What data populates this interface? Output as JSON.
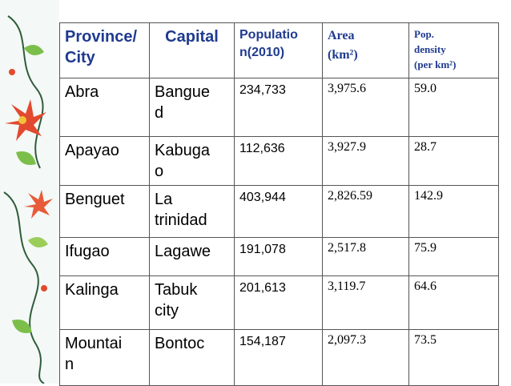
{
  "table": {
    "header": [
      [
        "Province/",
        "City"
      ],
      [
        "Capital"
      ],
      [
        "Populatio",
        "n(2010)"
      ],
      [
        "Area",
        "(km²)"
      ],
      [
        "Pop.",
        "density",
        "(per km²)"
      ]
    ],
    "rows": [
      [
        [
          "Abra"
        ],
        [
          "Bangue",
          "d"
        ],
        [
          "234,733"
        ],
        [
          "3,975.6"
        ],
        [
          "59.0"
        ]
      ],
      [
        [
          "Apayao"
        ],
        [
          "Kabuga",
          "o"
        ],
        [
          "112,636"
        ],
        [
          "3,927.9"
        ],
        [
          "28.7"
        ]
      ],
      [
        [
          "Benguet"
        ],
        [
          "La",
          "trinidad"
        ],
        [
          "403,944"
        ],
        [
          "2,826.59"
        ],
        [
          "142.9"
        ]
      ],
      [
        [
          "Ifugao"
        ],
        [
          "Lagawe"
        ],
        [
          "191,078"
        ],
        [
          "2,517.8"
        ],
        [
          "75.9"
        ]
      ],
      [
        [
          "Kalinga"
        ],
        [
          "Tabuk",
          "city"
        ],
        [
          "201,613"
        ],
        [
          "3,119.7"
        ],
        [
          "64.6"
        ]
      ],
      [
        [
          "Mountai",
          "n"
        ],
        [
          "Bontoc"
        ],
        [
          "154,187"
        ],
        [
          "2,097.3"
        ],
        [
          "73.5"
        ]
      ]
    ]
  }
}
